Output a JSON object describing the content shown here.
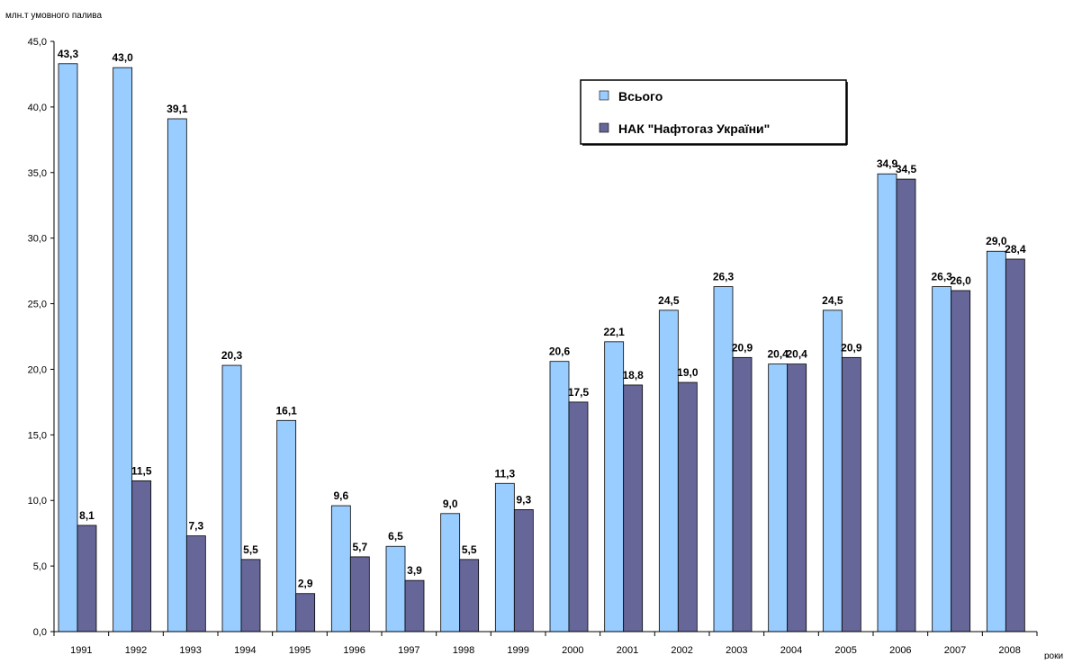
{
  "chart_data": {
    "type": "bar",
    "ylabel": "млн.т умовного палива",
    "xlabel": "роки",
    "ylim": [
      0,
      45
    ],
    "yticks": [
      "0,0",
      "5,0",
      "10,0",
      "15,0",
      "20,0",
      "25,0",
      "30,0",
      "35,0",
      "40,0",
      "45,0"
    ],
    "grid": false,
    "legend_position": "top-right",
    "categories": [
      "1991",
      "1992",
      "1993",
      "1994",
      "1995",
      "1996",
      "1997",
      "1998",
      "1999",
      "2000",
      "2001",
      "2002",
      "2003",
      "2004",
      "2005",
      "2006",
      "2007",
      "2008"
    ],
    "series": [
      {
        "name": "Всього",
        "color": "#99ccff",
        "values": [
          43.3,
          43.0,
          39.1,
          20.3,
          16.1,
          9.6,
          6.5,
          9.0,
          11.3,
          20.6,
          22.1,
          24.5,
          26.3,
          20.4,
          24.5,
          34.9,
          26.3,
          29.0
        ],
        "labels": [
          "43,3",
          "43,0",
          "39,1",
          "20,3",
          "16,1",
          "9,6",
          "6,5",
          "9,0",
          "11,3",
          "20,6",
          "22,1",
          "24,5",
          "26,3",
          "20,4",
          "24,5",
          "34,9",
          "26,3",
          "29,0"
        ]
      },
      {
        "name": "НАК \"Нафтогаз України\"",
        "color": "#666699",
        "values": [
          8.1,
          11.5,
          7.3,
          5.5,
          2.9,
          5.7,
          3.9,
          5.5,
          9.3,
          17.5,
          18.8,
          19.0,
          20.9,
          20.4,
          20.9,
          34.5,
          26.0,
          28.4
        ],
        "labels": [
          "8,1",
          "11,5",
          "7,3",
          "5,5",
          "2,9",
          "5,7",
          "3,9",
          "5,5",
          "9,3",
          "17,5",
          "18,8",
          "19,0",
          "20,9",
          "20,4",
          "20,9",
          "34,5",
          "26,0",
          "28,4"
        ]
      }
    ]
  }
}
